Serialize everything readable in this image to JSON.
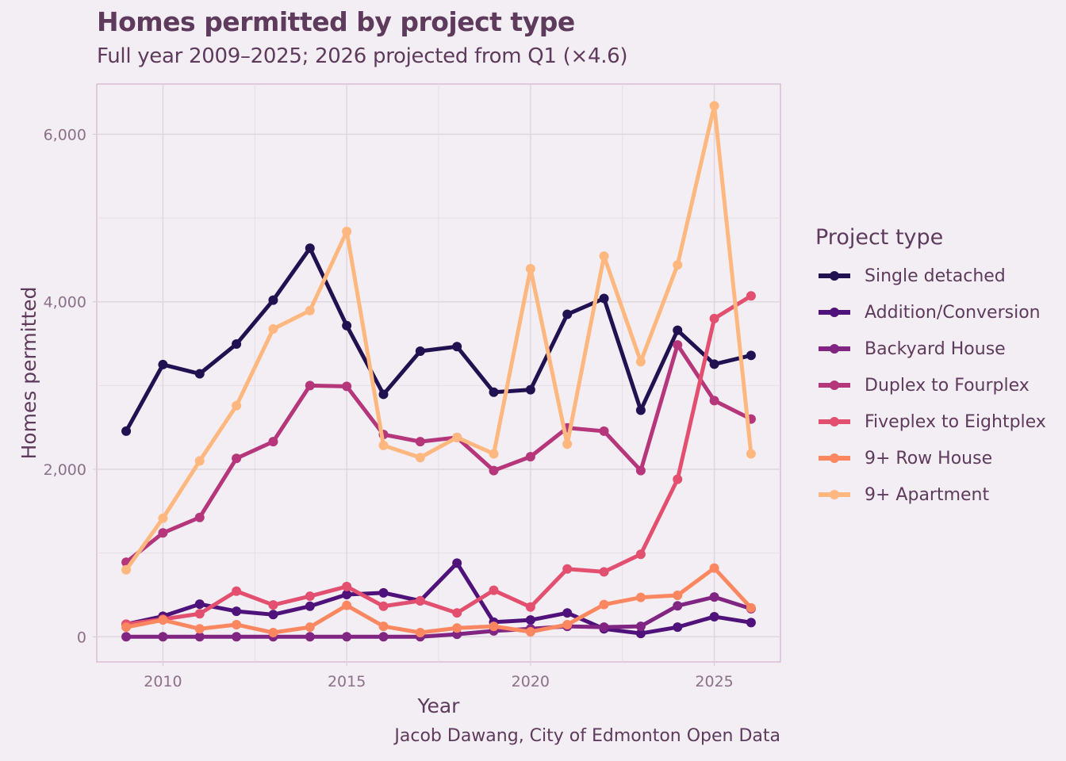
{
  "chart_data": {
    "type": "line",
    "title": "Homes permitted by project type",
    "subtitle": "Full year 2009–2025; 2026 projected from Q1 (×4.6)",
    "xlabel": "Year",
    "ylabel": "Homes permitted",
    "caption": "Jacob Dawang, City of Edmonton Open Data",
    "x": [
      2009,
      2010,
      2011,
      2012,
      2013,
      2014,
      2015,
      2016,
      2017,
      2018,
      2019,
      2020,
      2021,
      2022,
      2023,
      2024,
      2025,
      2026
    ],
    "xlim": [
      2008.2,
      2026.8
    ],
    "ylim": [
      -300,
      6600
    ],
    "x_ticks": [
      2010,
      2015,
      2020,
      2025
    ],
    "x_tick_labels": [
      "2010",
      "2015",
      "2020",
      "2025"
    ],
    "y_ticks": [
      0,
      2000,
      4000,
      6000
    ],
    "y_tick_labels": [
      "0",
      "2,000",
      "4,000",
      "6,000"
    ],
    "x_minor_ticks": [
      2012.5,
      2017.5,
      2022.5
    ],
    "y_minor_ticks": [
      1000,
      3000,
      5000
    ],
    "grid": true,
    "legend_title": "Project type",
    "legend_position": "right",
    "series": [
      {
        "name": "Single detached",
        "color": "#221150",
        "values": [
          2455,
          3250,
          3140,
          3495,
          4020,
          4640,
          3715,
          2895,
          3410,
          3465,
          2920,
          2950,
          3850,
          4040,
          2705,
          3660,
          3255,
          3360
        ]
      },
      {
        "name": "Addition/Conversion",
        "color": "#4f127b",
        "values": [
          150,
          245,
          390,
          305,
          265,
          365,
          505,
          525,
          430,
          880,
          175,
          200,
          285,
          95,
          40,
          115,
          240,
          170
        ]
      },
      {
        "name": "Backyard House",
        "color": "#802582",
        "values": [
          0,
          0,
          0,
          0,
          0,
          0,
          0,
          0,
          0,
          30,
          70,
          95,
          125,
          115,
          125,
          370,
          475,
          335
        ]
      },
      {
        "name": "Duplex to Fourplex",
        "color": "#b5367a",
        "values": [
          890,
          1240,
          1425,
          2130,
          2330,
          3000,
          2990,
          2415,
          2330,
          2380,
          1985,
          2150,
          2495,
          2455,
          1985,
          3485,
          2820,
          2600
        ]
      },
      {
        "name": "Fiveplex to Eightplex",
        "color": "#e34f6f",
        "values": [
          150,
          210,
          275,
          545,
          380,
          485,
          600,
          365,
          430,
          285,
          555,
          355,
          810,
          775,
          985,
          1880,
          3800,
          4070
        ]
      },
      {
        "name": "9+ Row House",
        "color": "#fb8761",
        "values": [
          115,
          200,
          95,
          145,
          50,
          115,
          375,
          125,
          50,
          105,
          125,
          60,
          145,
          385,
          470,
          495,
          820,
          345
        ]
      },
      {
        "name": "9+ Apartment",
        "color": "#feb77e",
        "values": [
          800,
          1415,
          2100,
          2760,
          3675,
          3895,
          4840,
          2285,
          2140,
          2380,
          2185,
          4395,
          2300,
          4545,
          3285,
          4440,
          6340,
          2185
        ]
      }
    ]
  }
}
